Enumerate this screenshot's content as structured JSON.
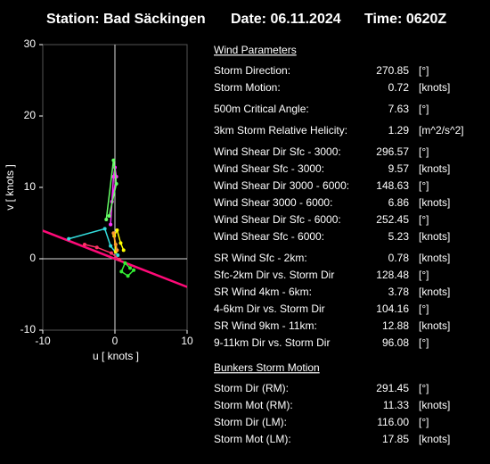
{
  "header": {
    "station": "Station: Bad Säckingen",
    "date": "Date: 06.11.2024",
    "time": "Time: 0620Z"
  },
  "chart_data": {
    "type": "line",
    "xlabel": "u  [ knots ]",
    "ylabel": "v  [ knots ]",
    "xlim": [
      -10,
      10
    ],
    "ylim": [
      -10,
      30
    ],
    "xticks": [
      -10,
      0,
      10
    ],
    "yticks": [
      -10,
      0,
      10,
      20,
      30
    ],
    "series": [
      {
        "color": "#ff0a78",
        "x": [
          -16,
          10.4
        ],
        "values": [
          6.3,
          -4.1
        ]
      },
      {
        "color": "#33dddd",
        "x": [
          -6.4,
          -1.4,
          -0.6,
          0.4
        ],
        "values": [
          2.8,
          4.2,
          1.8,
          0.5
        ]
      },
      {
        "color": "#ff3366",
        "x": [
          -4.2,
          -2.5,
          -0.5,
          0.6
        ],
        "values": [
          2.0,
          1.6,
          0.8,
          -0.1
        ]
      },
      {
        "color": "#33ee33",
        "x": [
          2.1,
          1.4,
          0.9,
          1.8,
          2.6
        ],
        "values": [
          -1.3,
          -0.6,
          -1.8,
          -2.4,
          -1.6
        ]
      },
      {
        "color": "#ffff00",
        "x": [
          0.1,
          -0.1,
          0.3,
          0.8,
          1.2
        ],
        "values": [
          1.0,
          3.2,
          4.0,
          2.2,
          1.2
        ]
      },
      {
        "color": "#ff9933",
        "x": [
          0.3,
          -0.2,
          0.1
        ],
        "values": [
          1.2,
          3.6,
          2.0
        ]
      },
      {
        "color": "#ff33ff",
        "x": [
          -0.6,
          -0.2,
          0.0,
          0.2,
          -0.4
        ],
        "values": [
          4.8,
          11.5,
          12.8,
          11.5,
          8.0
        ]
      },
      {
        "color": "#66ff66",
        "x": [
          -1.2,
          -0.2,
          0.2,
          -0.8
        ],
        "values": [
          5.5,
          13.8,
          10.5,
          6.0
        ]
      }
    ]
  },
  "parameters": {
    "groups": [
      {
        "title": "Wind Parameters",
        "rows": [
          {
            "label": "Storm Direction:",
            "value": "270.85",
            "unit": "[°]",
            "color": "#ff1a1a"
          },
          {
            "label": "Storm Motion:",
            "value": "0.72",
            "unit": "[knots]",
            "color": "#ff1a1a"
          }
        ]
      },
      {
        "rows": [
          {
            "label": "500m Critical Angle:",
            "value": "7.63",
            "unit": "[°]",
            "color": "#ff66ff"
          }
        ]
      },
      {
        "rows": [
          {
            "label": "3km Storm Relative Helicity:",
            "value": "1.29",
            "unit": "[m^2/s^2]",
            "color": "#33cc33"
          }
        ]
      },
      {
        "rows": [
          {
            "label": "Wind Shear Dir Sfc - 3000:",
            "value": "296.57",
            "unit": "[°]",
            "color": "#33dddd"
          },
          {
            "label": "Wind Shear Sfc - 3000:",
            "value": "9.57",
            "unit": "[knots]",
            "color": "#33dddd"
          },
          {
            "label": "Wind Shear Dir 3000 - 6000:",
            "value": "148.63",
            "unit": "[°]",
            "color": "#33dddd"
          },
          {
            "label": "Wind Shear 3000 - 6000:",
            "value": "6.86",
            "unit": "[knots]",
            "color": "#33dddd"
          },
          {
            "label": "Wind Shear Dir Sfc - 6000:",
            "value": "252.45",
            "unit": "[°]",
            "color": "#33dddd"
          },
          {
            "label": "Wind Shear Sfc - 6000:",
            "value": "5.23",
            "unit": "[knots]",
            "color": "#33dddd"
          }
        ]
      },
      {
        "rows": [
          {
            "label": "SR Wind Sfc - 2km:",
            "value": "0.78",
            "unit": "[knots]",
            "color": "#ffff00"
          },
          {
            "label": "Sfc-2km Dir vs. Storm Dir",
            "value": "128.48",
            "unit": "[°]",
            "color": "#ffff00"
          },
          {
            "label": "SR Wind 4km - 6km:",
            "value": "3.78",
            "unit": "[knots]",
            "color": "#ff9933"
          },
          {
            "label": "4-6km Dir vs. Storm Dir",
            "value": "104.16",
            "unit": "[°]",
            "color": "#ff9933"
          },
          {
            "label": "SR Wind 9km - 11km:",
            "value": "12.88",
            "unit": "[knots]",
            "color": "#dd33ff"
          },
          {
            "label": "9-11km Dir vs. Storm Dir",
            "value": "96.08",
            "unit": "[°]",
            "color": "#dd33ff"
          }
        ]
      },
      {
        "title": "Bunkers Storm Motion",
        "rows": [
          {
            "label": "Storm Dir (RM):",
            "value": "291.45",
            "unit": "[°]",
            "color": "#ff3366"
          },
          {
            "label": "Storm Mot (RM):",
            "value": "11.33",
            "unit": "[knots]",
            "color": "#ff3366"
          },
          {
            "label": "Storm Dir (LM):",
            "value": "116.00",
            "unit": "[°]",
            "color": "#ee1188"
          },
          {
            "label": "Storm Mot (LM):",
            "value": "17.85",
            "unit": "[knots]",
            "color": "#ee1188"
          }
        ]
      }
    ]
  }
}
